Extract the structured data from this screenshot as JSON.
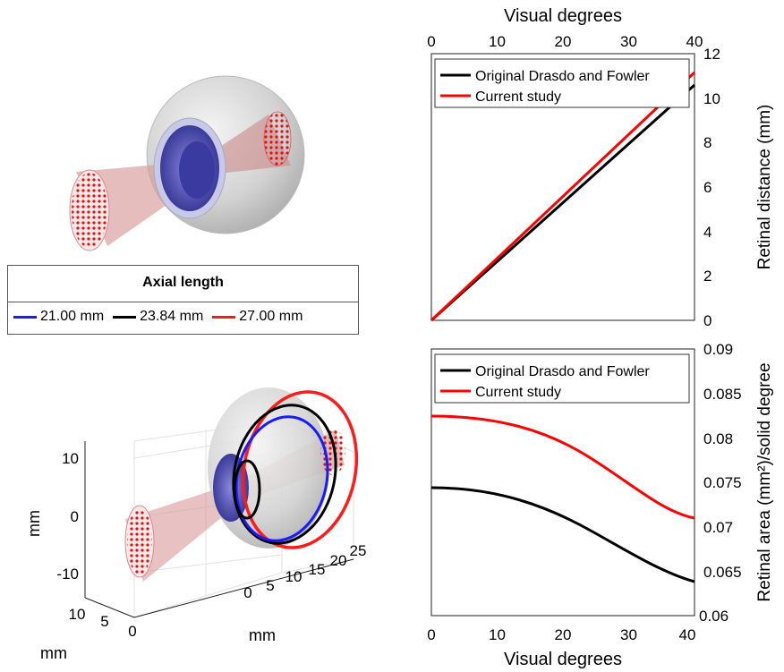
{
  "eye_legend": {
    "title": "Axial length",
    "items": [
      {
        "label": "21.00 mm",
        "color": "#1a1aff"
      },
      {
        "label": "23.84 mm",
        "color": "#000000"
      },
      {
        "label": "27.00 mm",
        "color": "#ff1a1a"
      }
    ]
  },
  "axes3d": {
    "z_label": "mm",
    "z_ticks": [
      "10",
      "0",
      "-10"
    ],
    "y_label": "mm",
    "y_ticks": [
      "10",
      "5",
      "0"
    ],
    "x_label": "mm",
    "x_ticks": [
      "0",
      "5",
      "10",
      "15",
      "20",
      "25"
    ]
  },
  "chart_data": [
    {
      "type": "line",
      "xlabel": "Visual degrees",
      "ylabel": "Retinal distance (mm)",
      "xlim": [
        0,
        40
      ],
      "ylim": [
        0,
        12
      ],
      "x_ticks": [
        "0",
        "10",
        "20",
        "30",
        "40"
      ],
      "y_ticks": [
        "0",
        "2",
        "4",
        "6",
        "8",
        "10",
        "12"
      ],
      "legend_position": "top-left",
      "series": [
        {
          "name": "Original Drasdo and Fowler",
          "color": "#000000",
          "x": [
            0,
            10,
            20,
            30,
            40
          ],
          "y": [
            0,
            2.64,
            5.27,
            7.91,
            10.6
          ]
        },
        {
          "name": "Current study",
          "color": "#ff0000",
          "x": [
            0,
            10,
            20,
            30,
            40
          ],
          "y": [
            0,
            2.78,
            5.57,
            8.35,
            11.15
          ]
        }
      ]
    },
    {
      "type": "line",
      "xlabel": "Visual degrees",
      "ylabel": "Retinal area (mm²)/solid degree",
      "xlim": [
        0,
        40
      ],
      "ylim": [
        0.06,
        0.09
      ],
      "x_ticks": [
        "0",
        "10",
        "20",
        "30",
        "40"
      ],
      "y_ticks": [
        "0.06",
        "0.065",
        "0.07",
        "0.075",
        "0.08",
        "0.085",
        "0.09"
      ],
      "legend_position": "top-left",
      "series": [
        {
          "name": "Original Drasdo and Fowler",
          "color": "#000000",
          "x": [
            0,
            5,
            10,
            15,
            20,
            25,
            30,
            35,
            40
          ],
          "y": [
            0.0747,
            0.0744,
            0.0734,
            0.0719,
            0.07,
            0.0681,
            0.0663,
            0.065,
            0.0641
          ]
        },
        {
          "name": "Current study",
          "color": "#ff0000",
          "x": [
            0,
            5,
            10,
            15,
            20,
            25,
            30,
            35,
            40
          ],
          "y": [
            0.0827,
            0.0824,
            0.0814,
            0.0798,
            0.0779,
            0.0759,
            0.074,
            0.0722,
            0.071
          ]
        }
      ]
    }
  ]
}
